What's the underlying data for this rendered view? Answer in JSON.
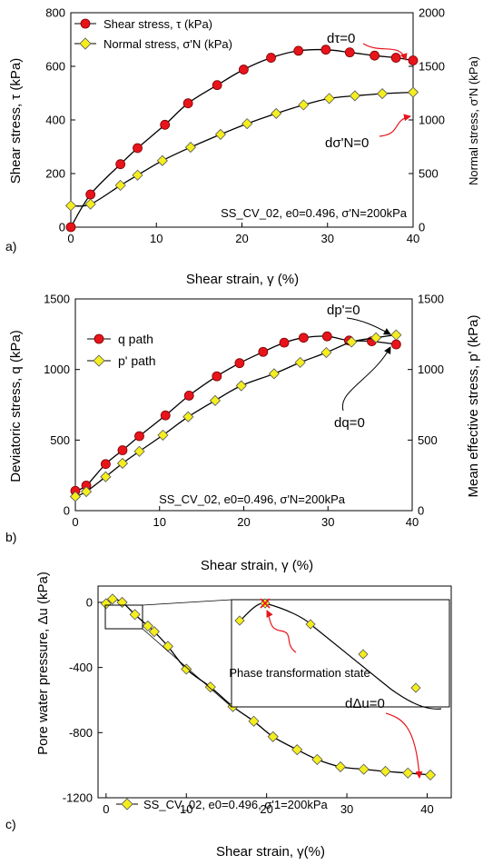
{
  "chart_data": [
    {
      "panel": "a)",
      "type": "line",
      "xlabel": "Shear strain, γ (%)",
      "ylabel": "Shear stress, τ (kPa)",
      "ylabel_right": "Normal stress, σ'N (kPa)",
      "xlim": [
        0,
        40
      ],
      "ylim": [
        0,
        800
      ],
      "ylim_right": [
        0,
        2000
      ],
      "xticks": [
        0,
        10,
        20,
        30,
        40
      ],
      "yticks": [
        0,
        200,
        400,
        600,
        800
      ],
      "yticks_right": [
        0,
        500,
        1000,
        1500,
        2000
      ],
      "legend_position": "top-left",
      "annotation": "SS_CV_02, e0=0.496, σ'N=200kPa",
      "callouts": [
        "dτ=0",
        "dσ'N=0"
      ],
      "series": [
        {
          "name": "Shear stress, τ (kPa)",
          "axis": "left",
          "marker": "circle",
          "color": "#e8141b",
          "x": [
            0,
            2.3,
            5.8,
            7.8,
            11,
            13.7,
            17.1,
            20.2,
            23.4,
            26.6,
            29.8,
            32.6,
            35.5,
            38,
            40
          ],
          "y": [
            0,
            122,
            235,
            295,
            382,
            462,
            530,
            588,
            632,
            658,
            662,
            652,
            640,
            632,
            622
          ]
        },
        {
          "name": "Normal stress, σ'N (kPa)",
          "axis": "right",
          "marker": "diamond",
          "color": "#f5ee1e",
          "x": [
            0,
            2.3,
            5.8,
            7.8,
            10.7,
            14,
            17.5,
            20.6,
            24,
            27.2,
            30.2,
            33.2,
            36.4,
            40
          ],
          "y": [
            200,
            215,
            390,
            485,
            620,
            745,
            865,
            965,
            1060,
            1140,
            1200,
            1225,
            1245,
            1258
          ]
        }
      ]
    },
    {
      "panel": "b)",
      "type": "line",
      "xlabel": "Shear strain, γ (%)",
      "ylabel": "Deviatoric stress, q (kPa)",
      "ylabel_right": "Mean effective stress, p' (kPa)",
      "xlim": [
        0,
        40
      ],
      "ylim": [
        0,
        1500
      ],
      "ylim_right": [
        0,
        1500
      ],
      "xticks": [
        0,
        10,
        20,
        30,
        40
      ],
      "yticks": [
        0,
        500,
        1000,
        1500
      ],
      "yticks_right": [
        0,
        500,
        1000,
        1500
      ],
      "legend_position": "top-left",
      "annotation": "SS_CV_02, e0=0.496, σ'N=200kPa",
      "callouts": [
        "dp'=0",
        "dq=0"
      ],
      "series": [
        {
          "name": "q path",
          "axis": "left",
          "marker": "circle",
          "color": "#e8141b",
          "x": [
            0,
            1.3,
            3.6,
            5.6,
            7.6,
            10.7,
            13.5,
            16.8,
            19.5,
            22.3,
            24.8,
            27.1,
            29.9,
            32.5,
            35.2,
            38.1
          ],
          "y": [
            140,
            178,
            330,
            428,
            528,
            675,
            815,
            952,
            1045,
            1125,
            1190,
            1225,
            1235,
            1205,
            1200,
            1178
          ]
        },
        {
          "name": "p' path",
          "axis": "right",
          "marker": "diamond",
          "color": "#f5ee1e",
          "x": [
            0,
            1.3,
            3.6,
            5.6,
            7.6,
            10.4,
            13.4,
            16.6,
            19.7,
            23.6,
            26.7,
            29.8,
            32.8,
            35.7,
            38.1
          ],
          "y": [
            100,
            135,
            240,
            335,
            420,
            535,
            665,
            780,
            885,
            970,
            1050,
            1120,
            1195,
            1225,
            1245
          ]
        }
      ]
    },
    {
      "panel": "c)",
      "type": "line",
      "xlabel": "Shear strain, γ(%)",
      "ylabel": "Pore water pressure, Δu (kPa)",
      "xlim": [
        -1,
        43
      ],
      "ylim": [
        -1200,
        100
      ],
      "xticks": [
        0,
        10,
        20,
        30,
        40
      ],
      "yticks": [
        0,
        -400,
        -800,
        -1200
      ],
      "legend_position": "bottom-left",
      "annotation": "",
      "callouts": [
        "dΔu=0",
        "Phase transformation state"
      ],
      "series": [
        {
          "name": "SS_CV_02, e0=0.496, σ'1=200kPa",
          "axis": "left",
          "marker": "diamond",
          "color": "#f5ee1e",
          "x": [
            0,
            0.8,
            2,
            3.6,
            5.2,
            6,
            7.7,
            10,
            13,
            15.8,
            18.4,
            20.8,
            23.8,
            26.3,
            29.2,
            32.1,
            34.8,
            37.6,
            40.4
          ],
          "y": [
            -8,
            20,
            0,
            -75,
            -145,
            -180,
            -270,
            -410,
            -520,
            -640,
            -730,
            -825,
            -905,
            -965,
            -1010,
            -1025,
            -1038,
            -1048,
            -1060
          ]
        }
      ]
    }
  ]
}
